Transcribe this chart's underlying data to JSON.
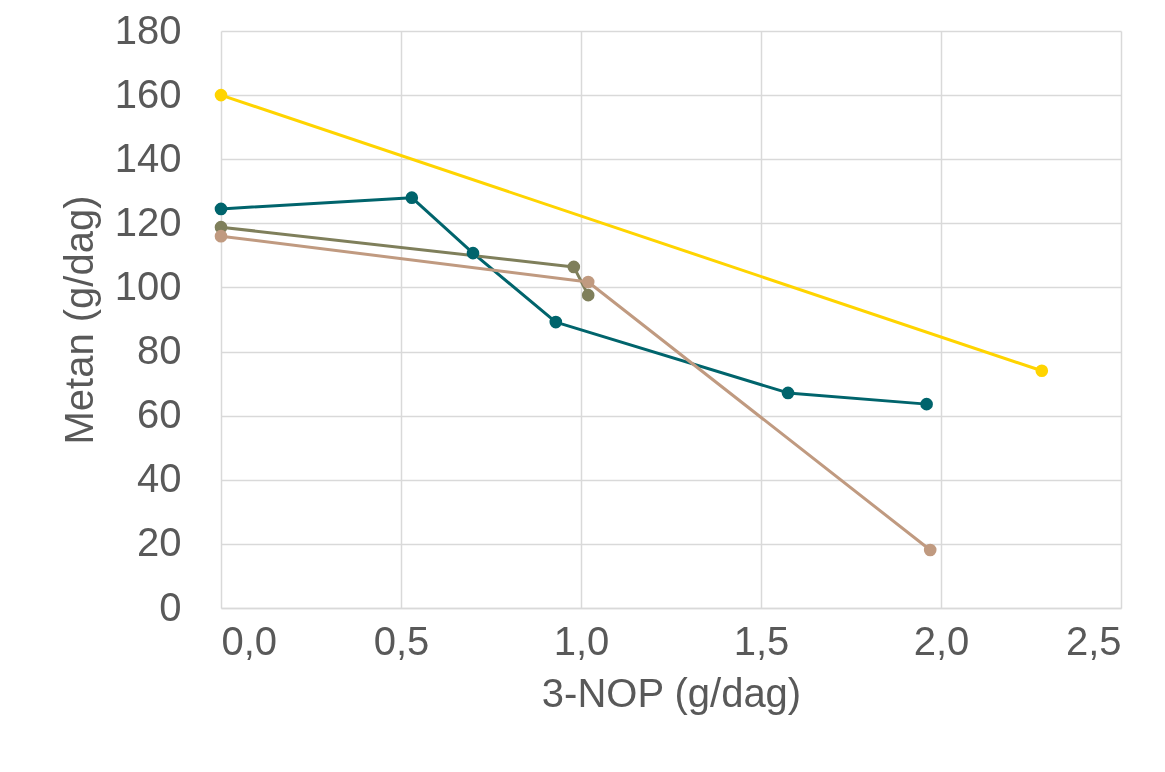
{
  "chart_data": {
    "type": "line",
    "xlabel": "3-NOP (g/dag)",
    "ylabel": "Metan (g/dag)",
    "xlim": [
      0,
      2.5
    ],
    "xticks": [
      {
        "value": 0,
        "label": "0,0"
      },
      {
        "value": 0.5,
        "label": "0,5"
      },
      {
        "value": 1,
        "label": "1,0"
      },
      {
        "value": 1.5,
        "label": "1,5"
      },
      {
        "value": 2,
        "label": "2,0"
      },
      {
        "value": 2.5,
        "label": "2,5"
      }
    ],
    "ylim": [
      0,
      180
    ],
    "yticks": [
      0,
      20,
      40,
      60,
      80,
      100,
      120,
      140,
      160,
      180
    ],
    "grid": true,
    "marker": "circle",
    "line_style": "solid",
    "series": [
      {
        "color": "#ffd400",
        "x": [
          0,
          2.28
        ],
        "values": [
          160,
          74
        ]
      },
      {
        "color": "#00646c",
        "x": [
          0,
          0.53,
          0.7,
          0.93,
          1.575,
          1.96
        ],
        "values": [
          124.5,
          128,
          110.7,
          89.2,
          67.1,
          63.6
        ]
      },
      {
        "color": "#7f7f5b",
        "x": [
          0,
          0.98,
          1.02
        ],
        "values": [
          118.8,
          106.4,
          97.6
        ]
      },
      {
        "color": "#c09a80",
        "x": [
          0,
          1.02,
          1.97
        ],
        "values": [
          116,
          101.7,
          18.1
        ]
      }
    ]
  }
}
